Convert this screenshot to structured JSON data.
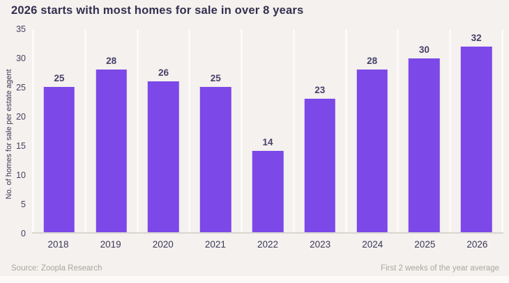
{
  "page": {
    "title": "2026 starts with most homes for sale in over 8 years"
  },
  "chart_data": {
    "type": "bar",
    "title": "2026 starts with most homes for sale in over 8 years",
    "categories": [
      "2018",
      "2019",
      "2020",
      "2021",
      "2022",
      "2023",
      "2024",
      "2025",
      "2026"
    ],
    "values": [
      25,
      28,
      26,
      25,
      14,
      23,
      28,
      30,
      32
    ],
    "xlabel": "",
    "ylabel": "No. of homes for sale per estate agent",
    "ylim": [
      0,
      35
    ],
    "yticks": [
      0,
      5,
      10,
      15,
      20,
      25,
      30,
      35
    ],
    "grid": "vertical-only",
    "legend": "none",
    "value_labels": "above-bars"
  },
  "footer": {
    "source": "Source: Zoopla Research",
    "note": "First 2 weeks of the year average"
  },
  "colors": {
    "background": "#f4f1ee",
    "bar": "#7c48e8",
    "title_text": "#332f4f",
    "value_text": "#45406a",
    "axis_text": "#46415f",
    "footer_text": "#aaa6a1",
    "gridline": "#fcfbfa",
    "baseline": "#d9d6d1",
    "bottom_strip": "#fbfaf8"
  }
}
